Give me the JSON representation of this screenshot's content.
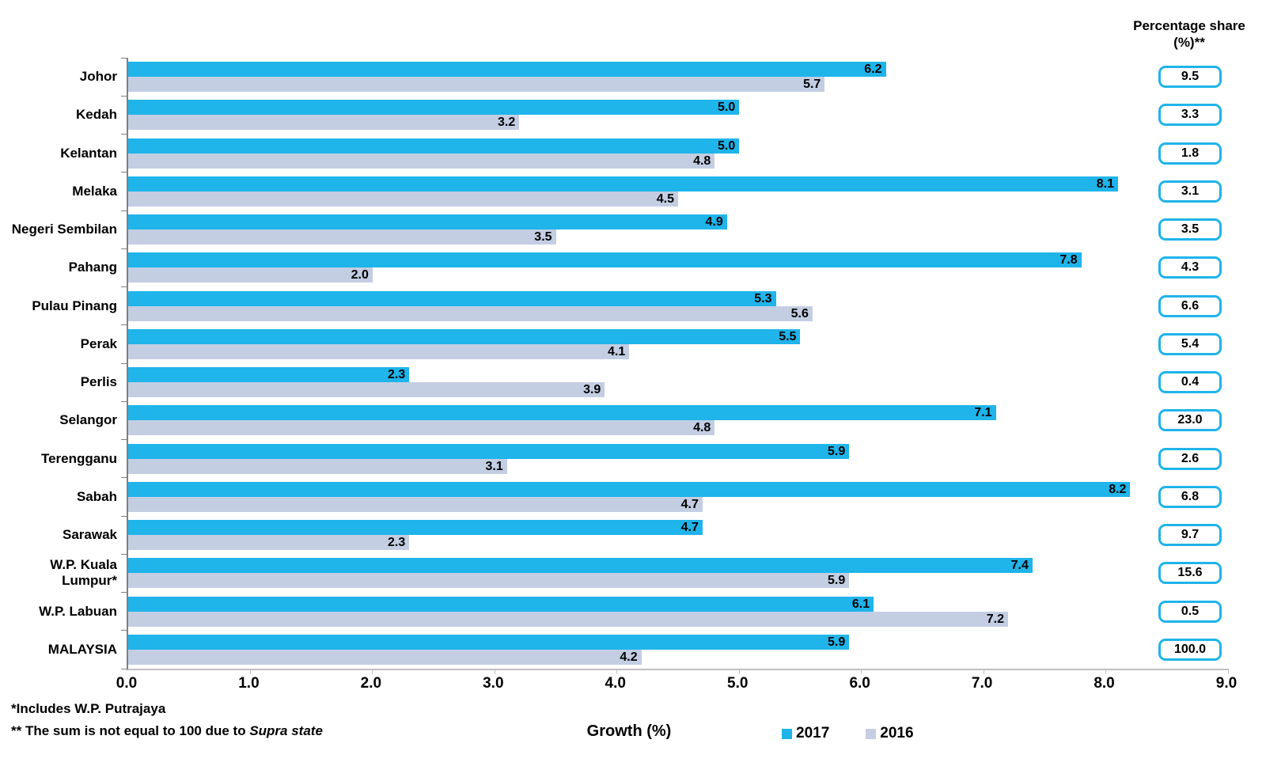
{
  "header": {
    "share_title_line1": "Percentage share",
    "share_title_line2": "(%)**"
  },
  "axis": {
    "xlabel": "Growth (%)",
    "xticks": [
      "0.0",
      "1.0",
      "2.0",
      "3.0",
      "4.0",
      "5.0",
      "6.0",
      "7.0",
      "8.0",
      "9.0"
    ]
  },
  "legend": {
    "items": [
      {
        "label": "2017",
        "color": "#1FB4EA"
      },
      {
        "label": "2016",
        "color": "#C3CEE3"
      }
    ]
  },
  "footnotes": {
    "line1": "*Includes W.P. Putrajaya",
    "line2_plain": "** The sum is not equal to 100 due to ",
    "line2_italic": "Supra state"
  },
  "colors": {
    "bar_2017": "#1FB4EA",
    "bar_2016": "#C3CEE3",
    "share_box_border": "#1FB4EA",
    "axis_left": "#808080",
    "axis_bottom": "#BFBFBF",
    "text": "#000000"
  },
  "chart_data": {
    "type": "bar",
    "orientation": "horizontal",
    "xlabel": "Growth (%)",
    "xlim": [
      0,
      9
    ],
    "grid": false,
    "legend_position": "bottom",
    "share_column_header": "Percentage share (%)**",
    "categories": [
      "Johor",
      "Kedah",
      "Kelantan",
      "Melaka",
      "Negeri Sembilan",
      "Pahang",
      "Pulau Pinang",
      "Perak",
      "Perlis",
      "Selangor",
      "Terengganu",
      "Sabah",
      "Sarawak",
      "W.P. Kuala Lumpur*",
      "W.P. Labuan",
      "MALAYSIA"
    ],
    "series": [
      {
        "name": "2017",
        "values": [
          6.2,
          5.0,
          5.0,
          8.1,
          4.9,
          7.8,
          5.3,
          5.5,
          2.3,
          7.1,
          5.9,
          8.2,
          4.7,
          7.4,
          6.1,
          5.9
        ]
      },
      {
        "name": "2016",
        "values": [
          5.7,
          3.2,
          4.8,
          4.5,
          3.5,
          2.0,
          5.6,
          4.1,
          3.9,
          4.8,
          3.1,
          4.7,
          2.3,
          5.9,
          7.2,
          4.2
        ]
      }
    ],
    "percentage_share": [
      "9.5",
      "3.3",
      "1.8",
      "3.1",
      "3.5",
      "4.3",
      "6.6",
      "5.4",
      "0.4",
      "23.0",
      "2.6",
      "6.8",
      "9.7",
      "15.6",
      "0.5",
      "100.0"
    ]
  }
}
